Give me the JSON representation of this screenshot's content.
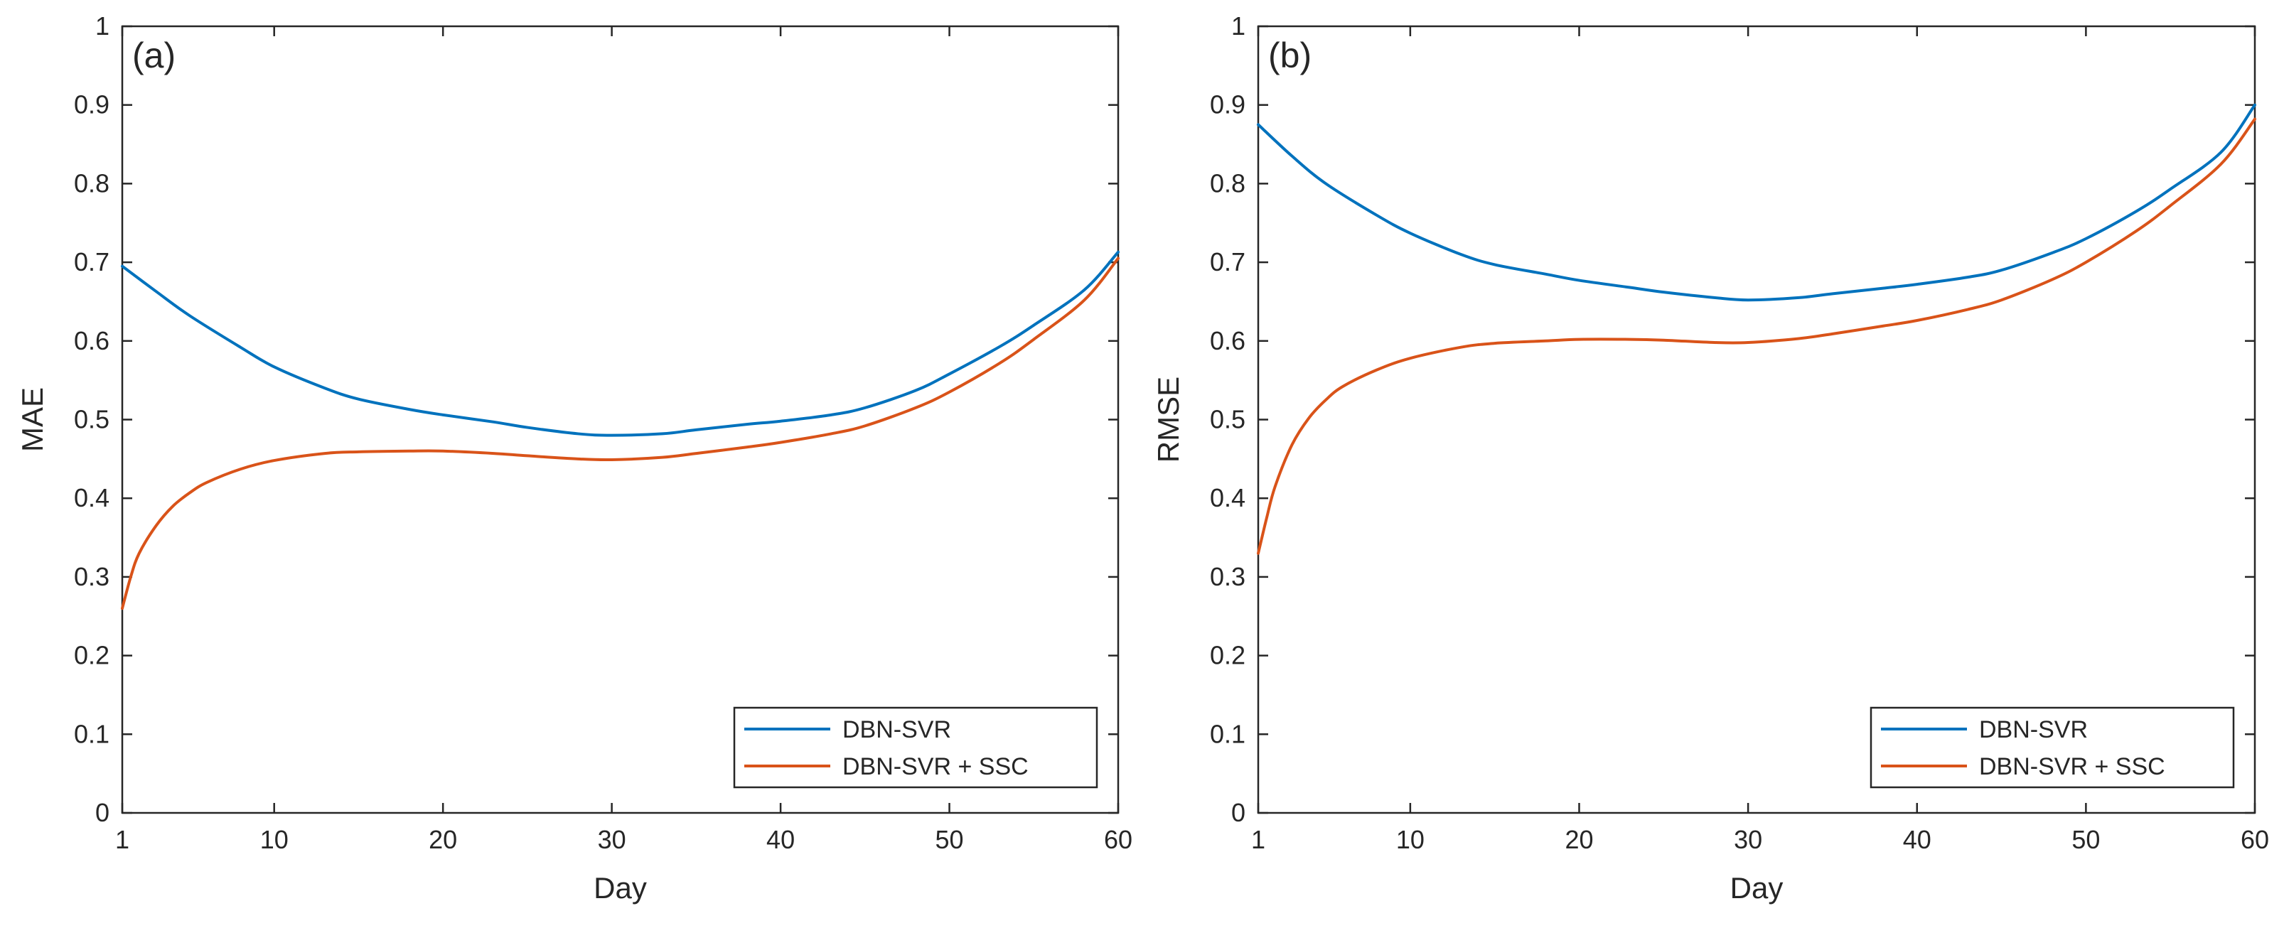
{
  "chart_data": [
    {
      "type": "line",
      "panel_label": "(a)",
      "title": "",
      "xlabel": "Day",
      "ylabel": "MAE",
      "xlim": [
        1,
        60
      ],
      "ylim": [
        0,
        1
      ],
      "xticks": [
        1,
        10,
        20,
        30,
        40,
        50,
        60
      ],
      "yticks": [
        0,
        0.1,
        0.2,
        0.3,
        0.4,
        0.5,
        0.6,
        0.7,
        0.8,
        0.9,
        1
      ],
      "ytick_labels": [
        "0",
        "0.1",
        "0.2",
        "0.3",
        "0.4",
        "0.5",
        "0.6",
        "0.7",
        "0.8",
        "0.9",
        "1"
      ],
      "legend_position": "bottom-right",
      "series": [
        {
          "name": "DBN-SVR",
          "color": "#0072BD",
          "x": [
            1,
            3,
            5,
            8,
            10,
            13,
            15,
            18,
            20,
            23,
            25,
            28,
            30,
            33,
            35,
            38,
            40,
            43,
            45,
            48,
            50,
            53,
            55,
            58,
            60
          ],
          "y": [
            0.695,
            0.663,
            0.632,
            0.592,
            0.567,
            0.54,
            0.526,
            0.513,
            0.506,
            0.497,
            0.49,
            0.482,
            0.48,
            0.482,
            0.487,
            0.494,
            0.498,
            0.506,
            0.515,
            0.537,
            0.558,
            0.593,
            0.62,
            0.665,
            0.713
          ]
        },
        {
          "name": "DBN-SVR + SSC",
          "color": "#D95319",
          "x": [
            1,
            1.5,
            2,
            3,
            4,
            5,
            6,
            8,
            10,
            13,
            15,
            18,
            20,
            23,
            25,
            28,
            30,
            33,
            35,
            38,
            40,
            43,
            45,
            48,
            50,
            53,
            55,
            58,
            60
          ],
          "y": [
            0.26,
            0.3,
            0.33,
            0.365,
            0.39,
            0.407,
            0.42,
            0.437,
            0.448,
            0.457,
            0.459,
            0.46,
            0.46,
            0.457,
            0.454,
            0.45,
            0.449,
            0.452,
            0.457,
            0.465,
            0.471,
            0.482,
            0.492,
            0.515,
            0.535,
            0.572,
            0.602,
            0.652,
            0.705
          ]
        }
      ]
    },
    {
      "type": "line",
      "panel_label": "(b)",
      "title": "",
      "xlabel": "Day",
      "ylabel": "RMSE",
      "xlim": [
        1,
        60
      ],
      "ylim": [
        0,
        1
      ],
      "xticks": [
        1,
        10,
        20,
        30,
        40,
        50,
        60
      ],
      "yticks": [
        0,
        0.1,
        0.2,
        0.3,
        0.4,
        0.5,
        0.6,
        0.7,
        0.8,
        0.9,
        1
      ],
      "ytick_labels": [
        "0",
        "0.1",
        "0.2",
        "0.3",
        "0.4",
        "0.5",
        "0.6",
        "0.7",
        "0.8",
        "0.9",
        "1"
      ],
      "legend_position": "bottom-right",
      "series": [
        {
          "name": "DBN-SVR",
          "color": "#0072BD",
          "x": [
            1,
            3,
            5,
            8,
            10,
            13,
            15,
            18,
            20,
            23,
            25,
            28,
            30,
            33,
            35,
            38,
            40,
            43,
            45,
            48,
            50,
            53,
            55,
            58,
            60
          ],
          "y": [
            0.875,
            0.835,
            0.8,
            0.76,
            0.737,
            0.71,
            0.697,
            0.685,
            0.677,
            0.668,
            0.662,
            0.655,
            0.652,
            0.655,
            0.66,
            0.667,
            0.672,
            0.681,
            0.69,
            0.712,
            0.73,
            0.765,
            0.793,
            0.84,
            0.9
          ]
        },
        {
          "name": "DBN-SVR + SSC",
          "color": "#D95319",
          "x": [
            1,
            1.5,
            2,
            3,
            4,
            5,
            6,
            8,
            10,
            13,
            15,
            18,
            20,
            23,
            25,
            28,
            30,
            33,
            35,
            38,
            40,
            43,
            45,
            48,
            50,
            53,
            55,
            58,
            60
          ],
          "y": [
            0.33,
            0.375,
            0.415,
            0.468,
            0.502,
            0.525,
            0.542,
            0.563,
            0.578,
            0.592,
            0.597,
            0.6,
            0.602,
            0.602,
            0.601,
            0.598,
            0.598,
            0.603,
            0.609,
            0.619,
            0.626,
            0.64,
            0.652,
            0.678,
            0.7,
            0.74,
            0.772,
            0.825,
            0.882
          ]
        }
      ]
    }
  ]
}
